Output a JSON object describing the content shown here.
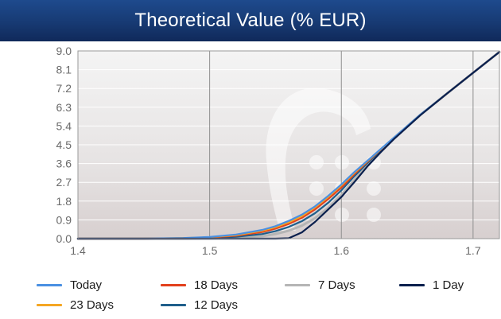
{
  "title": "Theoretical Value (% EUR)",
  "chart_data": {
    "type": "line",
    "title": "Theoretical Value (% EUR)",
    "xlabel": "",
    "ylabel": "",
    "xlim": [
      1.4,
      1.72
    ],
    "ylim": [
      0.0,
      9.0
    ],
    "x_ticks": [
      "1.4",
      "1.5",
      "1.6",
      "1.7"
    ],
    "y_ticks": [
      "0.0",
      "0.9",
      "1.8",
      "2.7",
      "3.6",
      "4.5",
      "5.4",
      "6.3",
      "7.2",
      "8.1",
      "9.0"
    ],
    "grid": true,
    "legend_position": "bottom",
    "x": [
      1.4,
      1.45,
      1.48,
      1.5,
      1.52,
      1.54,
      1.55,
      1.56,
      1.57,
      1.58,
      1.59,
      1.6,
      1.61,
      1.62,
      1.63,
      1.64,
      1.66,
      1.68,
      1.7,
      1.72
    ],
    "series": [
      {
        "name": "Today",
        "color": "#4a90e2",
        "values": [
          0.0,
          0.0,
          0.03,
          0.08,
          0.2,
          0.42,
          0.6,
          0.85,
          1.15,
          1.55,
          2.05,
          2.6,
          3.2,
          3.75,
          4.3,
          4.85,
          5.95,
          6.95,
          7.95,
          8.95
        ]
      },
      {
        "name": "18 Days",
        "color": "#e2401c",
        "values": [
          0.0,
          0.0,
          0.02,
          0.05,
          0.14,
          0.32,
          0.48,
          0.7,
          1.0,
          1.4,
          1.9,
          2.45,
          3.1,
          3.7,
          4.28,
          4.84,
          5.94,
          6.95,
          7.95,
          8.95
        ]
      },
      {
        "name": "7 Days",
        "color": "#b5b5b5",
        "values": [
          0.0,
          0.0,
          0.0,
          0.01,
          0.04,
          0.12,
          0.22,
          0.38,
          0.62,
          0.98,
          1.48,
          2.1,
          2.82,
          3.55,
          4.2,
          4.8,
          5.93,
          6.95,
          7.95,
          8.95
        ]
      },
      {
        "name": "1 Day",
        "color": "#0a1f4d",
        "values": [
          0.0,
          0.0,
          0.0,
          0.0,
          0.0,
          0.0,
          0.0,
          0.02,
          0.3,
          0.8,
          1.4,
          2.0,
          2.72,
          3.48,
          4.15,
          4.78,
          5.92,
          6.95,
          7.95,
          8.95
        ]
      },
      {
        "name": "23 Days",
        "color": "#f5a623",
        "values": [
          0.0,
          0.0,
          0.03,
          0.07,
          0.17,
          0.38,
          0.55,
          0.78,
          1.08,
          1.5,
          2.0,
          2.55,
          3.16,
          3.73,
          4.29,
          4.85,
          5.95,
          6.95,
          7.95,
          8.95
        ]
      },
      {
        "name": "12 Days",
        "color": "#1f5f8b",
        "values": [
          0.0,
          0.0,
          0.01,
          0.03,
          0.09,
          0.22,
          0.36,
          0.56,
          0.84,
          1.22,
          1.72,
          2.32,
          3.0,
          3.64,
          4.25,
          4.83,
          5.94,
          6.95,
          7.95,
          8.95
        ]
      }
    ]
  },
  "legend": [
    {
      "name": "Today",
      "color": "#4a90e2"
    },
    {
      "name": "18 Days",
      "color": "#e2401c"
    },
    {
      "name": "7 Days",
      "color": "#b5b5b5"
    },
    {
      "name": "1 Day",
      "color": "#0a1f4d"
    },
    {
      "name": "23 Days",
      "color": "#f5a623"
    },
    {
      "name": "12 Days",
      "color": "#1f5f8b"
    }
  ]
}
